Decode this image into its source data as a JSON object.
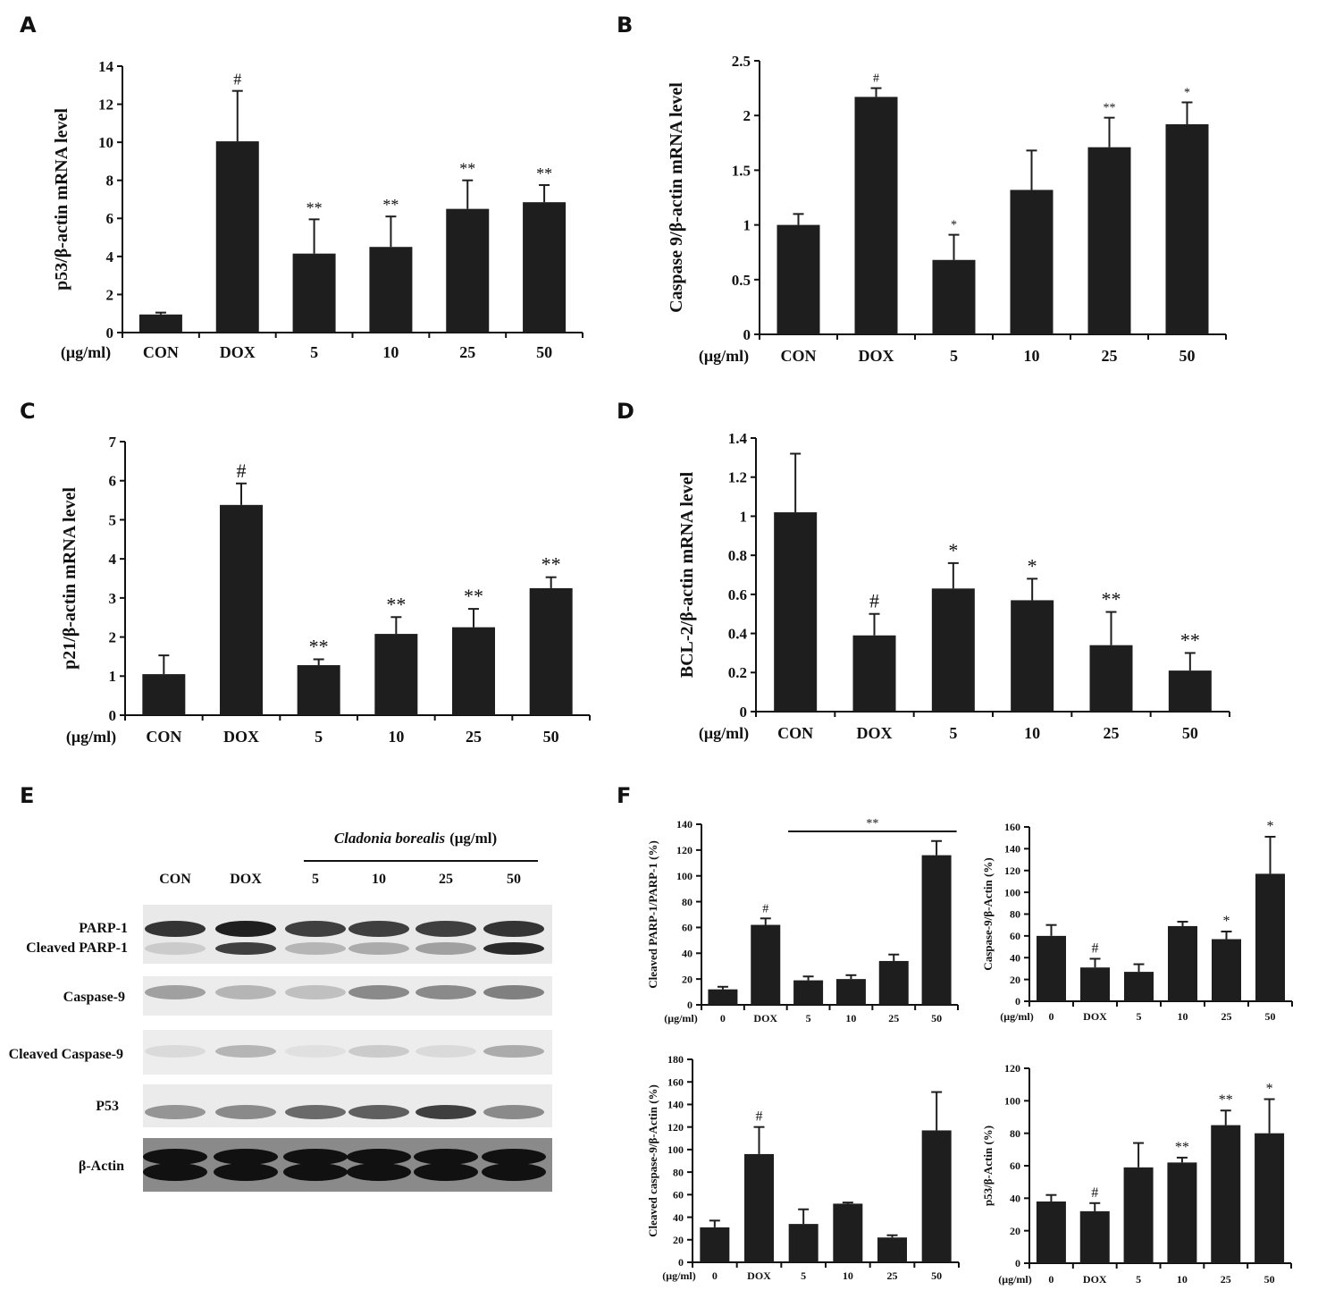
{
  "panel_labels": {
    "A": "A",
    "B": "B",
    "C": "C",
    "D": "D",
    "E": "E",
    "F": "F"
  },
  "unit_label": "(μg/ml)",
  "chart_data": [
    {
      "id": "A",
      "type": "bar",
      "ylabel": "p53/β-actin mRNA level",
      "ylim": [
        0,
        14
      ],
      "yticks": [
        "0",
        "2",
        "4",
        "6",
        "8",
        "10",
        "12",
        "14"
      ],
      "categories": [
        "CON",
        "DOX",
        "5",
        "10",
        "25",
        "50"
      ],
      "values": [
        0.95,
        10.05,
        4.15,
        4.5,
        6.5,
        6.85
      ],
      "errors": [
        0.1,
        2.65,
        1.8,
        1.6,
        1.5,
        0.9
      ],
      "annotations": [
        "",
        "#",
        "**",
        "**",
        "**",
        "**"
      ]
    },
    {
      "id": "B",
      "type": "bar",
      "ylabel": "Caspase 9/β-actin mRNA level",
      "ylim": [
        0,
        2.5
      ],
      "yticks": [
        "0",
        "0.5",
        "1",
        "1.5",
        "2",
        "2.5"
      ],
      "categories": [
        "CON",
        "DOX",
        "5",
        "10",
        "25",
        "50"
      ],
      "values": [
        1.0,
        2.17,
        0.68,
        1.32,
        1.71,
        1.92
      ],
      "errors": [
        0.1,
        0.08,
        0.23,
        0.36,
        0.27,
        0.2
      ],
      "annotations": [
        "",
        "#",
        "*",
        "",
        "**",
        "*"
      ]
    },
    {
      "id": "C",
      "type": "bar",
      "ylabel": "p21/β-actin mRNA level",
      "ylim": [
        0,
        7
      ],
      "yticks": [
        "0",
        "1",
        "2",
        "3",
        "4",
        "5",
        "6",
        "7"
      ],
      "categories": [
        "CON",
        "DOX",
        "5",
        "10",
        "25",
        "50"
      ],
      "values": [
        1.05,
        5.38,
        1.28,
        2.08,
        2.25,
        3.25
      ],
      "errors": [
        0.48,
        0.55,
        0.15,
        0.43,
        0.47,
        0.28
      ],
      "annotations": [
        "",
        "#",
        "**",
        "**",
        "**",
        "**"
      ]
    },
    {
      "id": "D",
      "type": "bar",
      "ylabel": "BCL-2/β-actin mRNA level",
      "ylim": [
        0,
        1.4
      ],
      "yticks": [
        "0",
        "0.2",
        "0.4",
        "0.6",
        "0.8",
        "1",
        "1.2",
        "1.4"
      ],
      "categories": [
        "CON",
        "DOX",
        "5",
        "10",
        "25",
        "50"
      ],
      "values": [
        1.02,
        0.39,
        0.63,
        0.57,
        0.34,
        0.21
      ],
      "errors": [
        0.3,
        0.11,
        0.13,
        0.11,
        0.17,
        0.09
      ],
      "annotations": [
        "",
        "#",
        "*",
        "*",
        "**",
        "**"
      ]
    },
    {
      "id": "F1",
      "type": "bar",
      "ylabel": "Cleaved PARP-1/PARP-1 (%)",
      "ylim": [
        0,
        140
      ],
      "yticks": [
        "0",
        "20",
        "40",
        "60",
        "80",
        "100",
        "120",
        "140"
      ],
      "categories": [
        "0",
        "DOX",
        "5",
        "10",
        "25",
        "50"
      ],
      "values": [
        12,
        62,
        19,
        20,
        34,
        116
      ],
      "errors": [
        2,
        5,
        3,
        3,
        5,
        11
      ],
      "annotations": [
        "",
        "#",
        "",
        "",
        "",
        ""
      ],
      "bracket": {
        "from": 2,
        "to": 5,
        "label": "**"
      }
    },
    {
      "id": "F2",
      "type": "bar",
      "ylabel": "Caspase-9/β-Actin (%)",
      "ylim": [
        0,
        160
      ],
      "yticks": [
        "0",
        "20",
        "40",
        "60",
        "80",
        "100",
        "120",
        "140",
        "160"
      ],
      "categories": [
        "0",
        "DOX",
        "5",
        "10",
        "25",
        "50"
      ],
      "values": [
        60,
        31,
        27,
        69,
        57,
        117
      ],
      "errors": [
        10,
        8,
        7,
        4,
        7,
        34
      ],
      "annotations": [
        "",
        "#",
        "",
        "",
        "*",
        "*"
      ]
    },
    {
      "id": "F3",
      "type": "bar",
      "ylabel": "Cleaved caspase-9/β-Actin (%)",
      "ylim": [
        0,
        180
      ],
      "yticks": [
        "0",
        "20",
        "40",
        "60",
        "80",
        "100",
        "120",
        "140",
        "160",
        "180"
      ],
      "categories": [
        "0",
        "DOX",
        "5",
        "10",
        "25",
        "50"
      ],
      "values": [
        31,
        96,
        34,
        52,
        22,
        117
      ],
      "errors": [
        6,
        24,
        13,
        1,
        2,
        34
      ],
      "annotations": [
        "",
        "#",
        "",
        "",
        "",
        ""
      ]
    },
    {
      "id": "F4",
      "type": "bar",
      "ylabel": "p53/β-Actin (%)",
      "ylim": [
        0,
        120
      ],
      "yticks": [
        "0",
        "20",
        "40",
        "60",
        "80",
        "100",
        "120"
      ],
      "categories": [
        "0",
        "DOX",
        "5",
        "10",
        "25",
        "50"
      ],
      "values": [
        38,
        32,
        59,
        62,
        85,
        80
      ],
      "errors": [
        4,
        5,
        15,
        3,
        9,
        21
      ],
      "annotations": [
        "",
        "#",
        "",
        "**",
        "**",
        "*"
      ]
    }
  ],
  "blot": {
    "treatment_title_italic": "Cladonia borealis",
    "treatment_title_unit": "(μg/ml)",
    "lanes": [
      "CON",
      "DOX",
      "5",
      "10",
      "25",
      "50"
    ],
    "rows": [
      {
        "label": "PARP-1"
      },
      {
        "label": "Cleaved PARP-1"
      },
      {
        "label": "Caspase-9"
      },
      {
        "label": "Cleaved Caspase-9"
      },
      {
        "label": "P53"
      },
      {
        "label": "β-Actin"
      }
    ],
    "band_intensity": {
      "PARP-1": [
        0.85,
        0.95,
        0.8,
        0.8,
        0.8,
        0.85
      ],
      "Cleaved PARP-1": [
        0.15,
        0.8,
        0.25,
        0.3,
        0.35,
        0.9
      ],
      "Caspase-9": [
        0.35,
        0.25,
        0.2,
        0.45,
        0.45,
        0.5
      ],
      "Cleaved Caspase-9": [
        0.08,
        0.25,
        0.05,
        0.15,
        0.08,
        0.3
      ],
      "P53": [
        0.4,
        0.45,
        0.6,
        0.65,
        0.8,
        0.45
      ],
      "β-Actin": [
        1,
        1,
        1,
        1,
        1,
        1
      ]
    }
  }
}
